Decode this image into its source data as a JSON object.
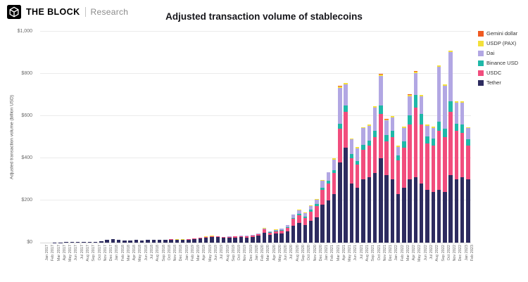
{
  "header": {
    "brand": "THE BLOCK",
    "brand_sub": "Research"
  },
  "chart_data": {
    "type": "bar",
    "stacked": true,
    "title": "Adjusted transaction volume of stablecoins",
    "xlabel": "",
    "ylabel": "Adjusted transaction volume (billion USD)",
    "ylim": [
      0,
      1000
    ],
    "grid": "horizontal",
    "legend_position": "right",
    "yticks": [
      {
        "value": 0,
        "label": "$0"
      },
      {
        "value": 200,
        "label": "$200"
      },
      {
        "value": 400,
        "label": "$400"
      },
      {
        "value": 600,
        "label": "$600"
      },
      {
        "value": 800,
        "label": "$800"
      },
      {
        "value": 1000,
        "label": "$1,000"
      }
    ],
    "categories": [
      "Jan 2017",
      "Feb 2017",
      "Mar 2017",
      "Apr 2017",
      "May 2017",
      "Jun 2017",
      "Jul 2017",
      "Aug 2017",
      "Sep 2017",
      "Oct 2017",
      "Nov 2017",
      "Dec 2017",
      "Jan 2018",
      "Feb 2018",
      "Mar 2018",
      "Apr 2018",
      "May 2018",
      "Jun 2018",
      "Jul 2018",
      "Aug 2018",
      "Sep 2018",
      "Oct 2018",
      "Nov 2018",
      "Dec 2018",
      "Jan 2019",
      "Feb 2019",
      "Mar 2019",
      "Apr 2019",
      "May 2019",
      "Jun 2019",
      "Jul 2019",
      "Aug 2019",
      "Sep 2019",
      "Oct 2019",
      "Nov 2019",
      "Dec 2019",
      "Jan 2020",
      "Feb 2020",
      "Mar 2020",
      "Apr 2020",
      "May 2020",
      "Jun 2020",
      "Jul 2020",
      "Aug 2020",
      "Sep 2020",
      "Oct 2020",
      "Nov 2020",
      "Dec 2020",
      "Jan 2021",
      "Feb 2021",
      "Mar 2021",
      "Apr 2021",
      "May 2021",
      "Jun 2021",
      "Jul 2021",
      "Aug 2021",
      "Sep 2021",
      "Oct 2021",
      "Nov 2021",
      "Dec 2021",
      "Jan 2022",
      "Feb 2022",
      "Mar 2022",
      "Apr 2022",
      "May 2022",
      "Jun 2022",
      "Jul 2022",
      "Aug 2022",
      "Sep 2022",
      "Oct 2022",
      "Nov 2022",
      "Dec 2022",
      "Jan 2023",
      "Feb 2023"
    ],
    "series": [
      {
        "name": "Tether",
        "color": "#2d2b5f",
        "values": [
          0.3,
          0.4,
          0.6,
          1,
          2,
          2.5,
          3,
          3.5,
          4,
          5,
          8,
          12,
          16,
          12,
          11,
          10,
          12,
          11,
          13,
          14,
          12,
          14,
          15,
          13,
          13,
          14,
          16,
          20,
          24,
          27,
          26,
          23,
          24,
          25,
          26,
          25,
          28,
          32,
          48,
          38,
          42,
          44,
          52,
          80,
          92,
          85,
          105,
          120,
          180,
          200,
          230,
          380,
          450,
          280,
          260,
          300,
          310,
          330,
          400,
          320,
          300,
          230,
          260,
          300,
          310,
          280,
          250,
          240,
          250,
          240,
          320,
          300,
          310,
          300
        ]
      },
      {
        "name": "USDC",
        "color": "#f14d7d",
        "values": [
          0,
          0,
          0,
          0,
          0,
          0,
          0,
          0,
          0,
          0,
          0,
          0,
          0,
          0,
          0,
          0,
          0,
          0,
          0,
          0,
          0,
          0.5,
          1,
          1.5,
          2,
          2,
          2.5,
          3,
          3,
          3.5,
          3.5,
          3,
          3.5,
          4,
          4,
          5,
          6,
          7,
          14,
          10,
          12,
          14,
          18,
          32,
          38,
          32,
          42,
          52,
          70,
          80,
          100,
          160,
          170,
          120,
          110,
          140,
          150,
          170,
          210,
          160,
          200,
          160,
          190,
          260,
          330,
          280,
          220,
          220,
          280,
          260,
          300,
          230,
          210,
          160
        ]
      },
      {
        "name": "Binance USD",
        "color": "#1fb8a8",
        "values": [
          0,
          0,
          0,
          0,
          0,
          0,
          0,
          0,
          0,
          0,
          0,
          0,
          0,
          0,
          0,
          0,
          0,
          0,
          0,
          0,
          0,
          0,
          0,
          0,
          0,
          0,
          0,
          0,
          0,
          0,
          0,
          0.2,
          0.3,
          0.5,
          0.8,
          1,
          1,
          1.2,
          2,
          2,
          2.5,
          3,
          4,
          6,
          8,
          8,
          10,
          12,
          10,
          12,
          15,
          25,
          30,
          20,
          18,
          22,
          25,
          30,
          40,
          30,
          30,
          25,
          30,
          45,
          60,
          50,
          35,
          35,
          45,
          40,
          50,
          35,
          40,
          30
        ]
      },
      {
        "name": "Dai",
        "color": "#b2a7e3",
        "values": [
          0,
          0,
          0,
          0,
          0,
          0,
          0,
          0,
          0,
          0,
          0,
          0,
          0,
          0,
          0,
          0,
          0,
          0,
          0,
          0,
          0,
          0.2,
          0.3,
          0.5,
          0.5,
          0.5,
          0.8,
          1,
          1,
          1.2,
          1.2,
          1,
          1.5,
          1.5,
          2,
          2,
          2,
          2,
          4,
          3,
          4,
          5,
          8,
          14,
          16,
          14,
          16,
          18,
          35,
          40,
          50,
          170,
          100,
          70,
          60,
          80,
          70,
          110,
          140,
          70,
          65,
          40,
          65,
          90,
          105,
          85,
          50,
          50,
          260,
          205,
          235,
          100,
          105,
          55
        ]
      },
      {
        "name": "USDP (PAX)",
        "color": "#f3e03b",
        "values": [
          0,
          0,
          0,
          0,
          0,
          0,
          0,
          0,
          0,
          0,
          0,
          0,
          0,
          0,
          0,
          0,
          0,
          0,
          0,
          0,
          0,
          0.3,
          0.5,
          0.8,
          0.8,
          0.8,
          1,
          1,
          1,
          1,
          1,
          1,
          1,
          1,
          1,
          1,
          1,
          1,
          1.5,
          1.5,
          1.5,
          1.5,
          2,
          2.5,
          3,
          3,
          3.5,
          4,
          3,
          3,
          4,
          6,
          6,
          4,
          4,
          5,
          5,
          6,
          8,
          5,
          5,
          4,
          5,
          6,
          6,
          5,
          4,
          4,
          5,
          5,
          5,
          4,
          4,
          3
        ]
      },
      {
        "name": "Gemini dollar",
        "color": "#f05a22",
        "values": [
          0,
          0,
          0,
          0,
          0,
          0,
          0,
          0,
          0,
          0,
          0,
          0,
          0,
          0,
          0,
          0,
          0,
          0,
          0,
          0,
          0,
          0.2,
          0.3,
          0.2,
          0.2,
          0.2,
          0.2,
          0.2,
          0.2,
          0.2,
          0.2,
          0.2,
          0.2,
          0.2,
          0.2,
          0.2,
          0.2,
          0.2,
          0.3,
          0.3,
          0.3,
          0.3,
          0.4,
          0.5,
          0.5,
          0.5,
          0.5,
          0.5,
          0.5,
          0.5,
          0.5,
          1,
          1,
          0.5,
          0.5,
          0.5,
          0.5,
          1,
          1,
          1,
          1,
          0.5,
          0.5,
          1,
          1,
          1,
          0.5,
          0.5,
          1,
          1,
          1,
          0.5,
          0.5,
          0.5
        ]
      }
    ],
    "legend_order": [
      "Gemini dollar",
      "USDP (PAX)",
      "Dai",
      "Binance USD",
      "USDC",
      "Tether"
    ]
  }
}
